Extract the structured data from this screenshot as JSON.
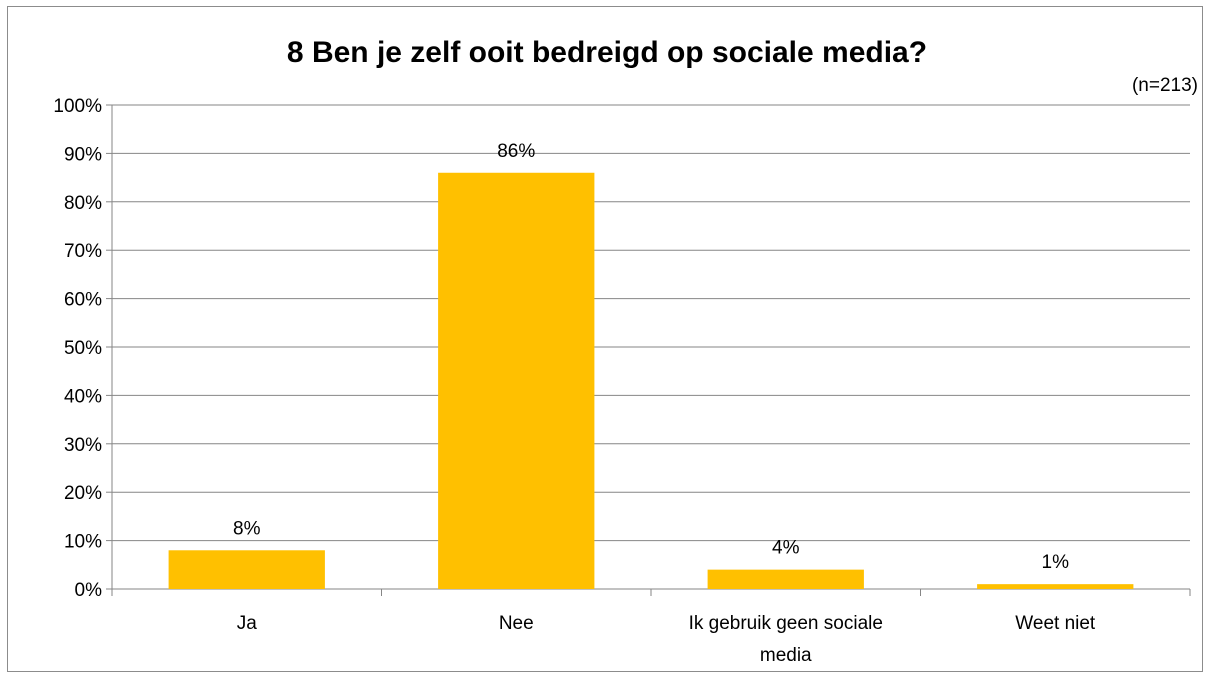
{
  "chart_data": {
    "type": "bar",
    "title": "8 Ben je zelf ooit bedreigd op sociale media?",
    "note": "(n=213)",
    "categories": [
      [
        "Ja"
      ],
      [
        "Nee"
      ],
      [
        "Ik gebruik geen sociale",
        "media"
      ],
      [
        "Weet niet"
      ]
    ],
    "values": [
      8,
      86,
      4,
      1
    ],
    "data_labels": [
      "8%",
      "86%",
      "4%",
      "1%"
    ],
    "ylim": [
      0,
      100
    ],
    "ytick_labels": [
      "0%",
      "10%",
      "20%",
      "30%",
      "40%",
      "50%",
      "60%",
      "70%",
      "80%",
      "90%",
      "100%"
    ],
    "xlabel": "",
    "ylabel": "",
    "grid": true,
    "legend": "none",
    "bar_color": "#FFC000",
    "grid_color": "#868686"
  }
}
